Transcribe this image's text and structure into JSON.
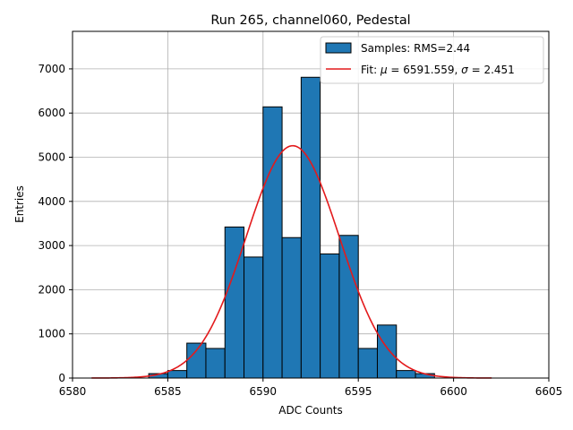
{
  "chart_data": {
    "type": "bar",
    "title": "Run 265, channel060, Pedestal",
    "xlabel": "ADC Counts",
    "ylabel": "Entries",
    "xlim": [
      6580,
      6605
    ],
    "ylim": [
      0,
      7850
    ],
    "xticks": [
      6580,
      6585,
      6590,
      6595,
      6600,
      6605
    ],
    "yticks": [
      0,
      1000,
      2000,
      3000,
      4000,
      5000,
      6000,
      7000
    ],
    "grid": true,
    "legend_position": "top-right",
    "histogram": {
      "name": "Samples: RMS=2.44",
      "color": "#1f77b4",
      "edgecolor": "#000000",
      "bin_edges": [
        6584,
        6585,
        6586,
        6587,
        6588,
        6589,
        6590,
        6591,
        6592,
        6593,
        6594,
        6595,
        6596,
        6597,
        6598,
        6599
      ],
      "counts": [
        100,
        170,
        790,
        670,
        3420,
        2740,
        6140,
        3180,
        6810,
        2810,
        3230,
        670,
        1200,
        170,
        100
      ]
    },
    "fit": {
      "name_prefix": "Fit: ",
      "name_mu": "μ",
      "name_mid": " = 6591.559, ",
      "name_sigma": "σ",
      "name_tail": " = 2.451",
      "color": "#e31a1c",
      "mu": 6591.559,
      "sigma": 2.451,
      "amplitude": 5260,
      "x_range": [
        6581,
        6602
      ]
    }
  }
}
